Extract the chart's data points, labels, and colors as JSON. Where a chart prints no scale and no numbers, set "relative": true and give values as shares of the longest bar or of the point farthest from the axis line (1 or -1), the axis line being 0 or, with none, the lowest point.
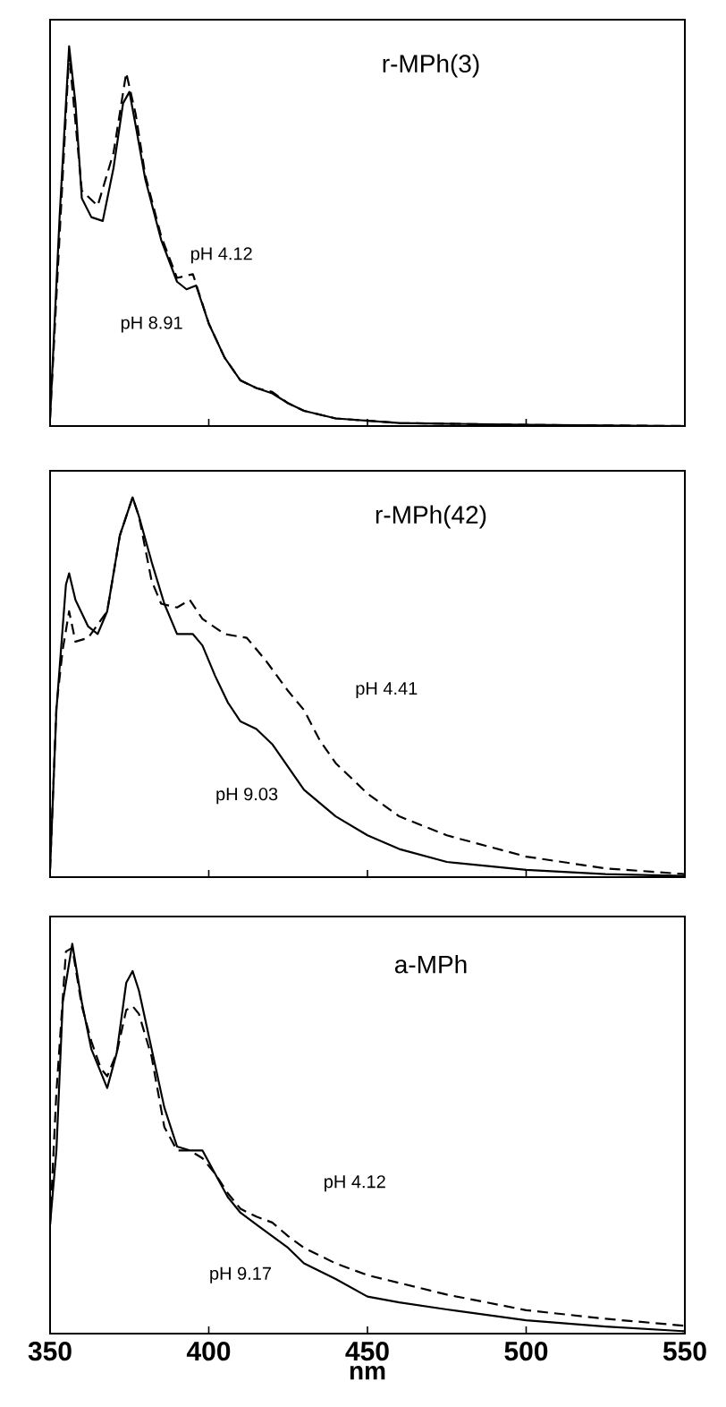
{
  "chart_data": [
    {
      "type": "line",
      "title": "r-MPh(3)",
      "relative": true,
      "xlim": [
        350,
        550
      ],
      "xticks": [
        350,
        400,
        450,
        500,
        550
      ],
      "tick_labels": false,
      "series": [
        {
          "color": "#000000",
          "line_style": "solid",
          "x": [
            350,
            353,
            356,
            358,
            360,
            363,
            366.6,
            370,
            373,
            375,
            377,
            380,
            385,
            390,
            393,
            396,
            400,
            405,
            410,
            415,
            420,
            425,
            430,
            440,
            460,
            500,
            550
          ],
          "values": [
            0.02,
            0.55,
            1.0,
            0.85,
            0.6,
            0.55,
            0.54,
            0.68,
            0.85,
            0.88,
            0.79,
            0.65,
            0.49,
            0.38,
            0.36,
            0.37,
            0.27,
            0.18,
            0.12,
            0.1,
            0.086,
            0.06,
            0.04,
            0.02,
            0.008,
            0.003,
            0
          ]
        },
        {
          "color": "#000000",
          "line_style": "dashed",
          "x": [
            350,
            353,
            356,
            358,
            360,
            365,
            370,
            374,
            377,
            380,
            385,
            390,
            395,
            400,
            405,
            410,
            415,
            420,
            425,
            430,
            440,
            460,
            500,
            550
          ],
          "values": [
            0.02,
            0.5,
            0.98,
            0.8,
            0.62,
            0.58,
            0.72,
            0.93,
            0.82,
            0.66,
            0.5,
            0.39,
            0.4,
            0.27,
            0.18,
            0.12,
            0.1,
            0.09,
            0.06,
            0.04,
            0.02,
            0.008,
            0.003,
            0
          ]
        }
      ],
      "annotations": [
        "pH 4.12",
        "pH 8.91"
      ]
    },
    {
      "type": "line",
      "title": "r-MPh(42)",
      "relative": true,
      "xlim": [
        350,
        550
      ],
      "xticks": [
        350,
        400,
        450,
        500,
        550
      ],
      "tick_labels": false,
      "series": [
        {
          "color": "#000000",
          "line_style": "solid",
          "x": [
            350,
            352,
            355,
            356,
            358,
            362,
            365,
            368,
            372,
            376,
            378,
            382,
            386,
            390,
            395,
            398,
            402,
            406,
            410,
            415,
            420,
            425,
            430,
            440,
            450,
            460,
            475,
            500,
            525,
            550
          ],
          "values": [
            0.02,
            0.44,
            0.77,
            0.8,
            0.73,
            0.66,
            0.64,
            0.7,
            0.9,
            1.0,
            0.95,
            0.83,
            0.72,
            0.64,
            0.64,
            0.61,
            0.53,
            0.46,
            0.41,
            0.39,
            0.35,
            0.29,
            0.23,
            0.16,
            0.11,
            0.074,
            0.04,
            0.019,
            0.008,
            0.003
          ]
        },
        {
          "color": "#000000",
          "line_style": "dashed",
          "x": [
            350,
            352,
            354,
            356,
            358,
            362,
            368,
            372,
            376,
            378,
            382,
            385,
            390,
            394,
            398,
            405,
            412,
            418,
            425,
            430,
            435,
            440,
            450,
            460,
            475,
            500,
            525,
            550
          ],
          "values": [
            0.02,
            0.45,
            0.6,
            0.7,
            0.62,
            0.63,
            0.7,
            0.9,
            1.0,
            0.95,
            0.78,
            0.72,
            0.71,
            0.73,
            0.68,
            0.64,
            0.63,
            0.57,
            0.49,
            0.44,
            0.36,
            0.3,
            0.22,
            0.16,
            0.11,
            0.054,
            0.023,
            0.008
          ]
        }
      ],
      "annotations": [
        "pH 4.41",
        "pH 9.03"
      ]
    },
    {
      "type": "line",
      "title": "a-MPh",
      "xlabel": "nm",
      "relative": true,
      "xlim": [
        350,
        550
      ],
      "xticks": [
        350,
        400,
        450,
        500,
        550
      ],
      "tick_labels": "x",
      "series": [
        {
          "color": "#000000",
          "line_style": "solid",
          "x": [
            350,
            352,
            354,
            357,
            360,
            363,
            366,
            368,
            371,
            374,
            376,
            378,
            382,
            386,
            390,
            394,
            398,
            402,
            406,
            410,
            415,
            420,
            425,
            430,
            440,
            450,
            460,
            475,
            500,
            525,
            550
          ],
          "values": [
            0.28,
            0.47,
            0.85,
            1.0,
            0.85,
            0.73,
            0.67,
            0.63,
            0.72,
            0.9,
            0.93,
            0.88,
            0.73,
            0.58,
            0.48,
            0.47,
            0.47,
            0.41,
            0.35,
            0.31,
            0.28,
            0.25,
            0.22,
            0.18,
            0.14,
            0.095,
            0.08,
            0.062,
            0.034,
            0.018,
            0.006
          ]
        },
        {
          "color": "#000000",
          "line_style": "dashed",
          "x": [
            350,
            352,
            355,
            357,
            360,
            363,
            366,
            368,
            371,
            374,
            376,
            378,
            382,
            386,
            390,
            394,
            398,
            402,
            406,
            410,
            415,
            420,
            425,
            430,
            440,
            450,
            460,
            475,
            500,
            525,
            550
          ],
          "values": [
            0.28,
            0.62,
            0.98,
            0.99,
            0.84,
            0.75,
            0.68,
            0.66,
            0.72,
            0.83,
            0.84,
            0.82,
            0.71,
            0.53,
            0.47,
            0.47,
            0.45,
            0.41,
            0.36,
            0.32,
            0.3,
            0.285,
            0.25,
            0.22,
            0.18,
            0.15,
            0.13,
            0.1,
            0.06,
            0.038,
            0.02
          ]
        }
      ],
      "annotations": [
        "pH 4.12",
        "pH 9.17"
      ]
    }
  ]
}
